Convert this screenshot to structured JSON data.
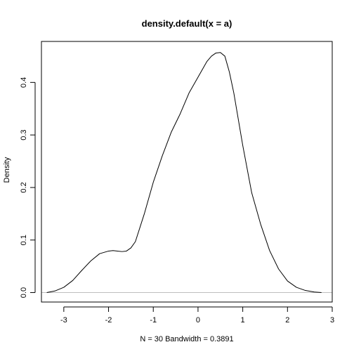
{
  "chart_data": {
    "type": "line",
    "title": "density.default(x = a)",
    "xlabel": "N = 30   Bandwidth = 0.3891",
    "ylabel": "Density",
    "xlim": [
      -3.5,
      3.0
    ],
    "ylim": [
      -0.018,
      0.478
    ],
    "xticks": [
      -3,
      -2,
      -1,
      0,
      1,
      2,
      3
    ],
    "xtick_labels": [
      "-3",
      "-2",
      "-1",
      "0",
      "1",
      "2",
      "3"
    ],
    "yticks": [
      0.0,
      0.1,
      0.2,
      0.3,
      0.4
    ],
    "ytick_labels": [
      "0.0",
      "0.1",
      "0.2",
      "0.3",
      "0.4"
    ],
    "grid": false,
    "baseline": {
      "y": 0,
      "color": "#bebebe"
    },
    "line_color": "#000000",
    "series": [
      {
        "x": [
          -3.38,
          -3.2,
          -3.0,
          -2.8,
          -2.6,
          -2.4,
          -2.2,
          -2.0,
          -1.9,
          -1.8,
          -1.7,
          -1.6,
          -1.5,
          -1.4,
          -1.2,
          -1.0,
          -0.8,
          -0.6,
          -0.4,
          -0.2,
          0.0,
          0.2,
          0.3,
          0.4,
          0.5,
          0.6,
          0.7,
          0.8,
          1.0,
          1.2,
          1.4,
          1.6,
          1.8,
          2.0,
          2.2,
          2.4,
          2.6,
          2.76
        ],
        "y": [
          0.0,
          0.003,
          0.01,
          0.023,
          0.042,
          0.06,
          0.074,
          0.079,
          0.08,
          0.079,
          0.078,
          0.079,
          0.085,
          0.097,
          0.15,
          0.21,
          0.26,
          0.305,
          0.34,
          0.38,
          0.41,
          0.44,
          0.45,
          0.456,
          0.457,
          0.45,
          0.42,
          0.38,
          0.28,
          0.19,
          0.13,
          0.08,
          0.045,
          0.022,
          0.01,
          0.004,
          0.001,
          0.0
        ]
      }
    ]
  }
}
